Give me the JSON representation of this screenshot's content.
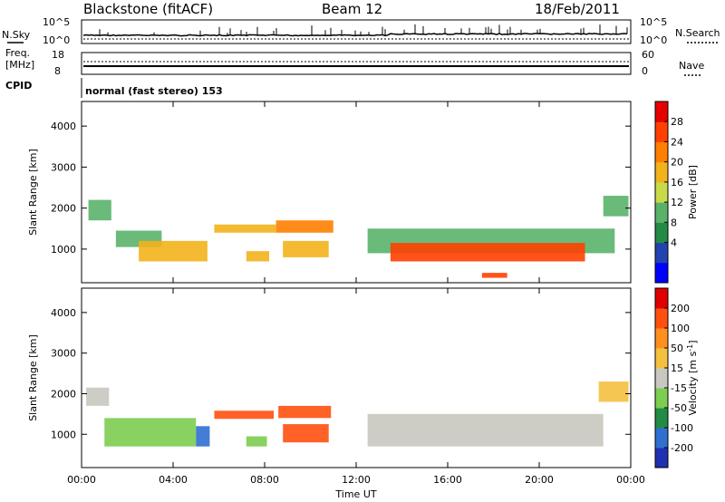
{
  "header": {
    "station": "Blackstone (fitACF)",
    "beam": "Beam 12",
    "date": "18/Feb/2011"
  },
  "top_panels": {
    "nsky_label": "N.Sky",
    "nsearch_label": "N.Search",
    "nsky_ticks": [
      "10^5",
      "10^0"
    ],
    "nsearch_ticks": [
      "10^5",
      "10^0"
    ],
    "freq_label_1": "Freq.",
    "freq_label_2": "[MHz]",
    "freq_ticks": [
      "18",
      "8"
    ],
    "nave_label": "Nave",
    "nave_ticks": [
      "60",
      "0"
    ],
    "cpid_label": "CPID",
    "cpid_text": "normal (fast stereo) 153"
  },
  "chart_data": [
    {
      "type": "heatmap",
      "quantity": "power",
      "ylabel": "Slant Range [km]",
      "ylim": [
        180,
        4600
      ],
      "yticks": [
        "4000",
        "3000",
        "2000",
        "1000"
      ],
      "xlim": [
        0,
        24
      ],
      "colorbar": {
        "label": "Power [dB]",
        "ticks": [
          "28",
          "24",
          "20",
          "16",
          "12",
          "8",
          "4"
        ],
        "colors": [
          "#0000ff",
          "#2244b0",
          "#238b45",
          "#5ab26a",
          "#c8d94a",
          "#f2b21c",
          "#ff7f00",
          "#ff4000",
          "#e60000"
        ]
      },
      "bands": [
        {
          "t0": 0.3,
          "t1": 1.3,
          "r0": 1700,
          "r1": 2200,
          "level": 3
        },
        {
          "t0": 1.5,
          "t1": 3.5,
          "r0": 1050,
          "r1": 1450,
          "level": 3
        },
        {
          "t0": 2.5,
          "t1": 5.5,
          "r0": 700,
          "r1": 1200,
          "level": 5
        },
        {
          "t0": 5.8,
          "t1": 8.5,
          "r0": 1400,
          "r1": 1600,
          "level": 5
        },
        {
          "t0": 7.2,
          "t1": 8.2,
          "r0": 700,
          "r1": 950,
          "level": 5
        },
        {
          "t0": 8.5,
          "t1": 11.0,
          "r0": 1400,
          "r1": 1700,
          "level": 6
        },
        {
          "t0": 8.8,
          "t1": 10.8,
          "r0": 800,
          "r1": 1200,
          "level": 5
        },
        {
          "t0": 12.5,
          "t1": 23.3,
          "r0": 900,
          "r1": 1500,
          "level": 3
        },
        {
          "t0": 13.5,
          "t1": 22.0,
          "r0": 700,
          "r1": 1150,
          "level": 7
        },
        {
          "t0": 17.5,
          "t1": 18.6,
          "r0": 300,
          "r1": 420,
          "level": 7
        },
        {
          "t0": 22.8,
          "t1": 23.9,
          "r0": 1800,
          "r1": 2300,
          "level": 3
        }
      ]
    },
    {
      "type": "heatmap",
      "quantity": "velocity",
      "ylabel": "Slant Range [km]",
      "ylim": [
        180,
        4600
      ],
      "yticks": [
        "4000",
        "3000",
        "2000",
        "1000"
      ],
      "xlim": [
        0,
        24
      ],
      "xticks": [
        "00:00",
        "04:00",
        "08:00",
        "12:00",
        "16:00",
        "20:00",
        "00:00"
      ],
      "xlabel": "Time UT",
      "colorbar": {
        "label": "Velocity [m s",
        "label_sup": "-1",
        "label_end": "]",
        "ticks": [
          "200",
          "100",
          "50",
          "15",
          "-15",
          "-50",
          "-100",
          "-200"
        ],
        "colors": [
          "#2030b0",
          "#2f6fd0",
          "#238b45",
          "#7ccd50",
          "#c8c8c0",
          "#f5c040",
          "#ff9020",
          "#ff5010",
          "#e00000"
        ]
      },
      "bands": [
        {
          "t0": 0.2,
          "t1": 1.2,
          "r0": 1700,
          "r1": 2150,
          "level": 4
        },
        {
          "t0": 1.0,
          "t1": 5.0,
          "r0": 700,
          "r1": 1400,
          "level": 3
        },
        {
          "t0": 5.0,
          "t1": 5.6,
          "r0": 700,
          "r1": 1200,
          "level": 1
        },
        {
          "t0": 5.8,
          "t1": 8.4,
          "r0": 1380,
          "r1": 1580,
          "level": 7
        },
        {
          "t0": 7.2,
          "t1": 8.1,
          "r0": 700,
          "r1": 950,
          "level": 3
        },
        {
          "t0": 8.6,
          "t1": 10.9,
          "r0": 1400,
          "r1": 1700,
          "level": 7
        },
        {
          "t0": 8.8,
          "t1": 10.8,
          "r0": 800,
          "r1": 1250,
          "level": 7
        },
        {
          "t0": 12.5,
          "t1": 22.8,
          "r0": 700,
          "r1": 1500,
          "level": 4
        },
        {
          "t0": 22.6,
          "t1": 23.9,
          "r0": 1800,
          "r1": 2300,
          "level": 5
        }
      ]
    }
  ]
}
